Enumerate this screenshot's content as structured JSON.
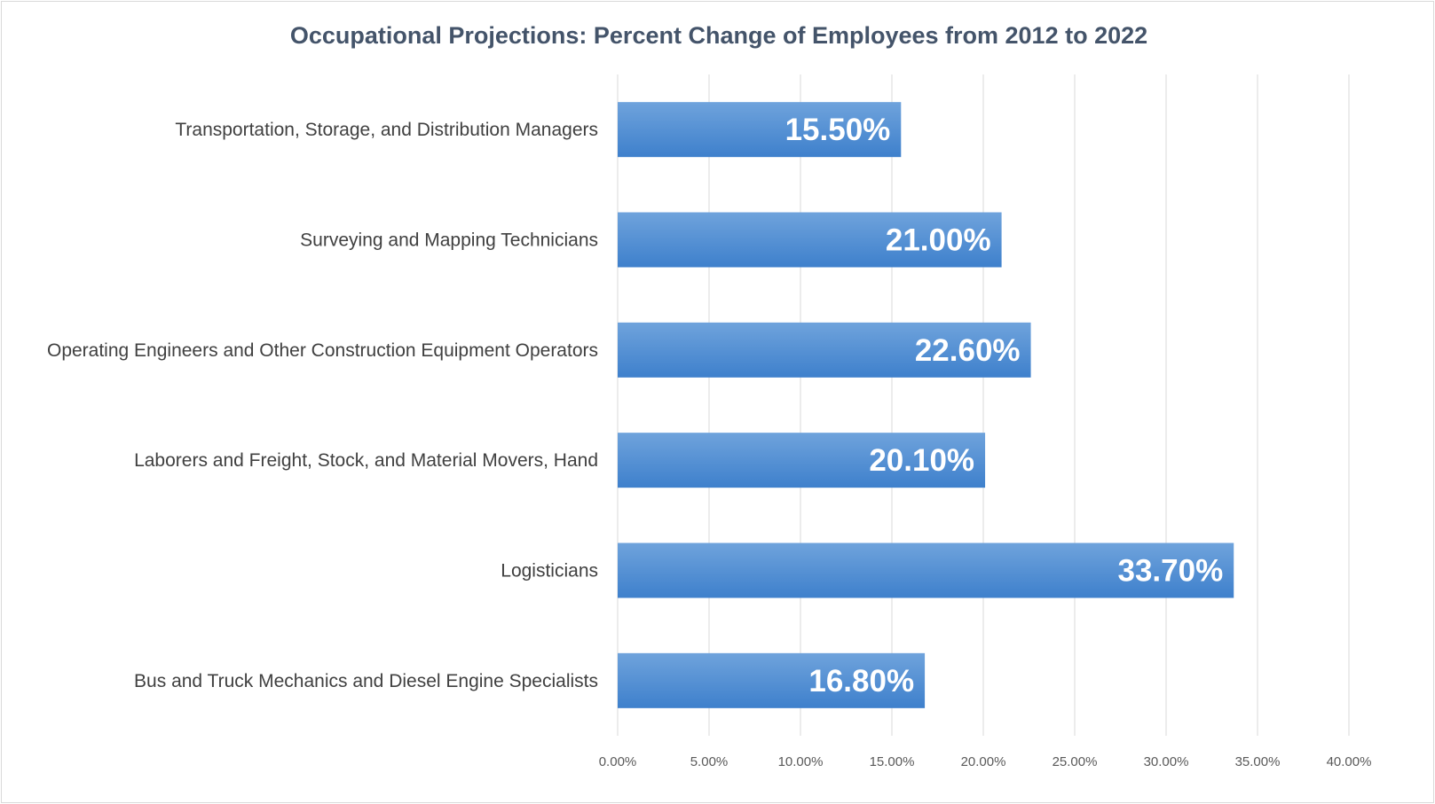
{
  "chart_data": {
    "type": "bar",
    "orientation": "horizontal",
    "title": "Occupational Projections: Percent Change of Employees from 2012 to 2022",
    "categories": [
      "Transportation, Storage, and Distribution Managers",
      "Surveying and Mapping Technicians",
      "Operating Engineers and Other Construction Equipment Operators",
      "Laborers and Freight, Stock, and Material Movers, Hand",
      "Logisticians",
      "Bus and Truck Mechanics and Diesel Engine Specialists"
    ],
    "values": [
      15.5,
      21.0,
      22.6,
      20.1,
      33.7,
      16.8
    ],
    "data_labels": [
      "15.50%",
      "21.00%",
      "22.60%",
      "20.10%",
      "33.70%",
      "16.80%"
    ],
    "x_ticks": [
      "0.00%",
      "5.00%",
      "10.00%",
      "15.00%",
      "20.00%",
      "25.00%",
      "30.00%",
      "35.00%",
      "40.00%"
    ],
    "xlim": [
      0,
      40
    ],
    "xlabel": "",
    "ylabel": "",
    "grid": true,
    "legend": "none",
    "colors": {
      "bar_top": "#6fa3dc",
      "bar_bottom": "#3e80cc",
      "title": "#44546a",
      "grid": "#d9d9d9"
    }
  }
}
